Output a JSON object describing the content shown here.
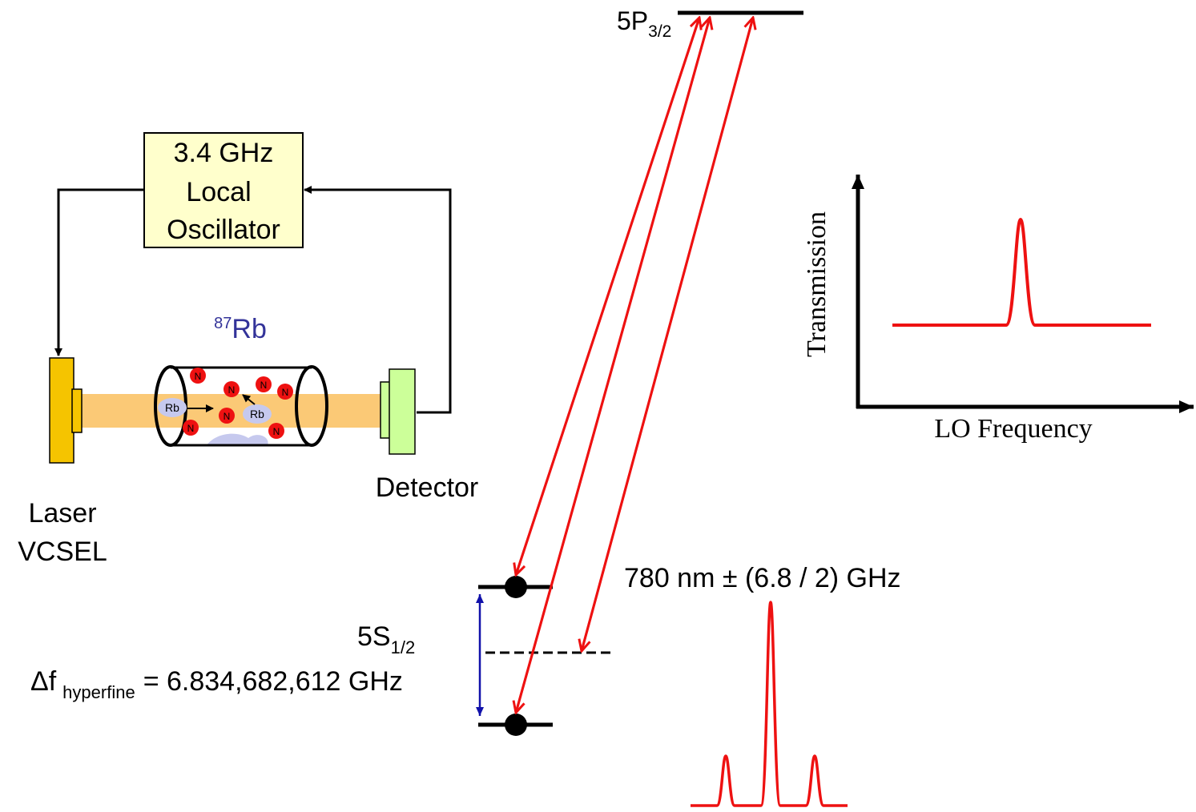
{
  "oscillator": {
    "line1": "3.4 GHz",
    "line2": "Local",
    "line3": "Oscillator",
    "fill_color": "#ffffcc"
  },
  "laser": {
    "line1": "Laser",
    "line2": "VCSEL",
    "color": "#f5c400"
  },
  "detector": {
    "label": "Detector",
    "color": "#ccff99"
  },
  "cell": {
    "isotope_sup": "87",
    "isotope_main": "Rb",
    "rb_label": "Rb",
    "n_label": "N",
    "beam_color": "#fbc976",
    "rb_color": "#c6c9ee",
    "n_color": "#ee1111",
    "label_color": "#333399"
  },
  "levels": {
    "excited_main": "5P",
    "excited_sub": "3/2",
    "ground_main": "5S",
    "ground_sub": "1/2",
    "hyperfine_prefix": "Δf",
    "hyperfine_sub": "hyperfine",
    "hyperfine_value": "= 6.834,682,612 GHz",
    "arrow_color": "#ee1111",
    "splitting_arrow_color": "#1111aa"
  },
  "spectrum": {
    "label": "780 nm ± (6.8 / 2) GHz",
    "color": "#ee1111"
  },
  "plot": {
    "ylabel": "Transmission",
    "xlabel": "LO Frequency",
    "curve_color": "#ee1111"
  }
}
